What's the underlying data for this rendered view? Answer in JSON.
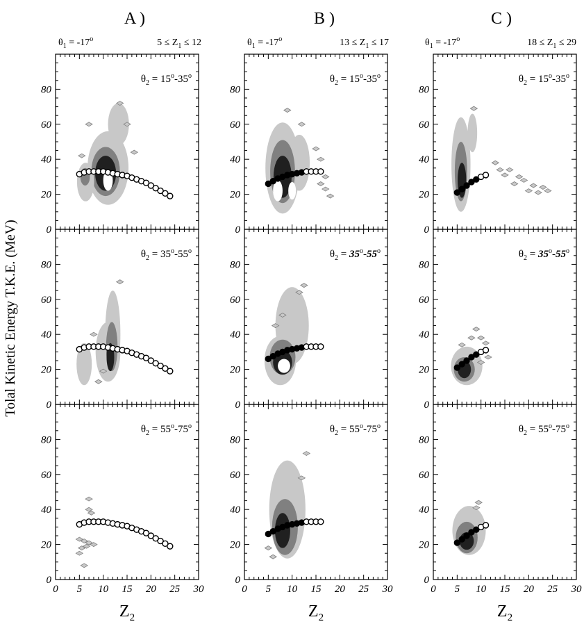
{
  "figure": {
    "ylabel": "Tolal Kinetic Energy T.K.E. (MeV)",
    "xlabel": "Z",
    "xlabel_sub": "2"
  },
  "columns": [
    {
      "title": "A )",
      "theta1": {
        "sym": "θ",
        "sub": "1",
        "rest": " = -17",
        "sup": "o"
      },
      "zrange": {
        "pre": "5 ≤ Z",
        "sub": "1",
        "post": " ≤ 12"
      }
    },
    {
      "title": "B )",
      "theta1": {
        "sym": "θ",
        "sub": "1",
        "rest": " = -17",
        "sup": "o"
      },
      "zrange": {
        "pre": "13 ≤ Z",
        "sub": "1",
        "post": " ≤ 17"
      }
    },
    {
      "title": "C )",
      "theta1": {
        "sym": "θ",
        "sub": "1",
        "rest": " = -17",
        "sup": "o"
      },
      "zrange": {
        "pre": "18 ≤ Z",
        "sub": "1",
        "post": " ≤ 29"
      }
    }
  ],
  "rows": [
    {
      "theta2": {
        "sym": "θ",
        "sub": "2",
        "eq": " = ",
        "a": "15",
        "a_sup": "o",
        "dash": "-",
        "b": "35",
        "b_sup": "o"
      }
    },
    {
      "theta2": {
        "sym": "θ",
        "sub": "2",
        "eq": " = ",
        "a": "35",
        "a_sup": "o",
        "dash": "-",
        "b": "55",
        "b_sup": "o"
      }
    },
    {
      "theta2": {
        "sym": "θ",
        "sub": "2",
        "eq": " = ",
        "a": "55",
        "a_sup": "o",
        "dash": "-",
        "b": "75",
        "b_sup": "o"
      }
    }
  ],
  "chart_data": {
    "type": "heatmap",
    "description_free": true,
    "xlim": [
      0,
      30
    ],
    "ylim": [
      0,
      100
    ],
    "xticks": [
      0,
      5,
      10,
      15,
      20,
      25,
      30
    ],
    "yticks": [
      0,
      20,
      40,
      60,
      80
    ],
    "grid": false,
    "colors": {
      "ink": "#000000",
      "density_low": "#c8c8c8",
      "density_mid": "#808080",
      "density_high": "#202020"
    },
    "theory_curve_a": {
      "x": [
        5,
        6,
        7,
        8,
        9,
        10,
        11,
        12,
        13,
        14,
        15,
        16,
        17,
        18,
        19,
        20,
        21,
        22,
        23,
        24
      ],
      "y": [
        31.5,
        32.5,
        33,
        33,
        33,
        33,
        32.5,
        32,
        31.5,
        31,
        30.5,
        29.5,
        28.5,
        27.5,
        26.5,
        25,
        23.5,
        22,
        20.5,
        19
      ]
    },
    "theory_curve_b": {
      "x": [
        5,
        6,
        7,
        8,
        9,
        10,
        11,
        12,
        13,
        14,
        15,
        16
      ],
      "y": [
        26,
        27.5,
        29,
        30,
        31,
        31.5,
        32,
        32.5,
        33,
        33,
        33,
        33
      ]
    },
    "theory_curve_c": {
      "x": [
        5,
        6,
        7,
        8,
        9,
        10,
        11
      ],
      "y": [
        21,
        23,
        25,
        27,
        28.5,
        30,
        31
      ]
    },
    "panels": [
      {
        "col": 0,
        "row": 0,
        "curve": "theory_curve_a",
        "curve_style": "open",
        "blobs": [
          {
            "cx": 11,
            "cy": 35,
            "rx": 4.3,
            "ry": 21,
            "c": "low"
          },
          {
            "cx": 13.2,
            "cy": 60,
            "rx": 2.2,
            "ry": 12,
            "c": "low"
          },
          {
            "cx": 10.5,
            "cy": 33,
            "rx": 3.0,
            "ry": 14,
            "c": "mid"
          },
          {
            "cx": 10.5,
            "cy": 32,
            "rx": 2.2,
            "ry": 10,
            "c": "high"
          },
          {
            "cx": 11,
            "cy": 28,
            "rx": 1.0,
            "ry": 6,
            "c": "white"
          },
          {
            "cx": 6.3,
            "cy": 27,
            "rx": 1.8,
            "ry": 11,
            "c": "low"
          },
          {
            "cx": 6.2,
            "cy": 30,
            "rx": 1.0,
            "ry": 5,
            "c": "mid"
          }
        ],
        "dots": [
          [
            7,
            60
          ],
          [
            5.5,
            42
          ],
          [
            15,
            60
          ],
          [
            13.5,
            72
          ],
          [
            16.5,
            44
          ]
        ]
      },
      {
        "col": 1,
        "row": 0,
        "curve": "theory_curve_b",
        "curve_style": "mixed",
        "blobs": [
          {
            "cx": 8,
            "cy": 35,
            "rx": 3.6,
            "ry": 26,
            "c": "low"
          },
          {
            "cx": 11.5,
            "cy": 38,
            "rx": 2.2,
            "ry": 16,
            "c": "low"
          },
          {
            "cx": 8,
            "cy": 33,
            "rx": 2.6,
            "ry": 18,
            "c": "mid"
          },
          {
            "cx": 8,
            "cy": 30,
            "rx": 1.9,
            "ry": 12,
            "c": "high"
          },
          {
            "cx": 7,
            "cy": 22,
            "rx": 1.0,
            "ry": 6,
            "c": "white"
          },
          {
            "cx": 10,
            "cy": 22,
            "rx": 0.8,
            "ry": 5,
            "c": "white"
          }
        ],
        "dots": [
          [
            9,
            68
          ],
          [
            12,
            60
          ],
          [
            15,
            46
          ],
          [
            16,
            40
          ],
          [
            17,
            30
          ],
          [
            16,
            26
          ],
          [
            17,
            23
          ],
          [
            18,
            19
          ],
          [
            15,
            33
          ]
        ]
      },
      {
        "col": 2,
        "row": 0,
        "curve": "theory_curve_c",
        "curve_style": "mixed",
        "blobs": [
          {
            "cx": 5.8,
            "cy": 37,
            "rx": 2.0,
            "ry": 27,
            "c": "low"
          },
          {
            "cx": 8.2,
            "cy": 55,
            "rx": 1.0,
            "ry": 11,
            "c": "low"
          },
          {
            "cx": 5.8,
            "cy": 33,
            "rx": 1.3,
            "ry": 17,
            "c": "mid"
          },
          {
            "cx": 6,
            "cy": 28,
            "rx": 0.9,
            "ry": 10,
            "c": "high"
          }
        ],
        "dots": [
          [
            8.5,
            69
          ],
          [
            13,
            38
          ],
          [
            14,
            34
          ],
          [
            15,
            31
          ],
          [
            16,
            34
          ],
          [
            18,
            30
          ],
          [
            17,
            26
          ],
          [
            19,
            28
          ],
          [
            21,
            25
          ],
          [
            20,
            22
          ],
          [
            22,
            21
          ],
          [
            23,
            24
          ],
          [
            24,
            22
          ]
        ]
      },
      {
        "col": 0,
        "row": 1,
        "curve": "theory_curve_a",
        "curve_style": "open",
        "blobs": [
          {
            "cx": 12,
            "cy": 40,
            "rx": 1.6,
            "ry": 25,
            "c": "low"
          },
          {
            "cx": 11,
            "cy": 30,
            "rx": 2.6,
            "ry": 17,
            "c": "low"
          },
          {
            "cx": 11.8,
            "cy": 33,
            "rx": 1.2,
            "ry": 14,
            "c": "mid"
          },
          {
            "cx": 11.5,
            "cy": 27,
            "rx": 0.8,
            "ry": 8,
            "c": "high"
          },
          {
            "cx": 6,
            "cy": 23,
            "rx": 1.6,
            "ry": 12,
            "c": "low"
          }
        ],
        "dots": [
          [
            13.5,
            70
          ],
          [
            8,
            40
          ],
          [
            10,
            19
          ],
          [
            9,
            13
          ]
        ]
      },
      {
        "col": 1,
        "row": 1,
        "curve": "theory_curve_b",
        "curve_style": "mixed",
        "blobs": [
          {
            "cx": 10,
            "cy": 45,
            "rx": 3.5,
            "ry": 22,
            "c": "low"
          },
          {
            "cx": 7.5,
            "cy": 25,
            "rx": 3.3,
            "ry": 14,
            "c": "low"
          },
          {
            "cx": 8,
            "cy": 27,
            "rx": 2.7,
            "ry": 10,
            "c": "mid"
          },
          {
            "cx": 8,
            "cy": 24,
            "rx": 2.0,
            "ry": 7,
            "c": "high"
          },
          {
            "cx": 8.3,
            "cy": 22,
            "rx": 1.3,
            "ry": 4,
            "c": "white"
          }
        ],
        "dots": [
          [
            12.5,
            68
          ],
          [
            11.5,
            64
          ],
          [
            8,
            51
          ],
          [
            6.5,
            45
          ]
        ]
      },
      {
        "col": 2,
        "row": 1,
        "curve": "theory_curve_c",
        "curve_style": "mixed",
        "blobs": [
          {
            "cx": 7,
            "cy": 22,
            "rx": 3.3,
            "ry": 11,
            "c": "low"
          },
          {
            "cx": 6.5,
            "cy": 20,
            "rx": 2.2,
            "ry": 7,
            "c": "mid"
          },
          {
            "cx": 6.5,
            "cy": 20,
            "rx": 1.4,
            "ry": 5,
            "c": "high"
          }
        ],
        "dots": [
          [
            9,
            43
          ],
          [
            8,
            38
          ],
          [
            6,
            34
          ],
          [
            10,
            38
          ],
          [
            11,
            35
          ],
          [
            11.5,
            27
          ],
          [
            10,
            24
          ]
        ]
      },
      {
        "col": 0,
        "row": 2,
        "curve": "theory_curve_a",
        "curve_style": "open",
        "blobs": [],
        "dots": [
          [
            7,
            46
          ],
          [
            7,
            40
          ],
          [
            7.5,
            38
          ],
          [
            5,
            23
          ],
          [
            6,
            22
          ],
          [
            7,
            21
          ],
          [
            5.5,
            18
          ],
          [
            6.5,
            19
          ],
          [
            5,
            15
          ],
          [
            8,
            20
          ],
          [
            6,
            8
          ]
        ]
      },
      {
        "col": 1,
        "row": 2,
        "curve": "theory_curve_b",
        "curve_style": "mixed",
        "blobs": [
          {
            "cx": 9,
            "cy": 40,
            "rx": 3.8,
            "ry": 28,
            "c": "low"
          },
          {
            "cx": 8.5,
            "cy": 30,
            "rx": 2.7,
            "ry": 16,
            "c": "mid"
          },
          {
            "cx": 8,
            "cy": 28,
            "rx": 1.6,
            "ry": 10,
            "c": "high"
          }
        ],
        "dots": [
          [
            13,
            72
          ],
          [
            12,
            58
          ],
          [
            5,
            18
          ],
          [
            6,
            13
          ]
        ]
      },
      {
        "col": 2,
        "row": 2,
        "curve": "theory_curve_c",
        "curve_style": "mixed",
        "blobs": [
          {
            "cx": 7.5,
            "cy": 28,
            "rx": 3.5,
            "ry": 14,
            "c": "low"
          },
          {
            "cx": 7,
            "cy": 24,
            "rx": 2.3,
            "ry": 9,
            "c": "mid"
          },
          {
            "cx": 7,
            "cy": 22,
            "rx": 1.5,
            "ry": 5,
            "c": "high"
          }
        ],
        "dots": [
          [
            9.5,
            44
          ],
          [
            9,
            41
          ]
        ]
      }
    ]
  }
}
